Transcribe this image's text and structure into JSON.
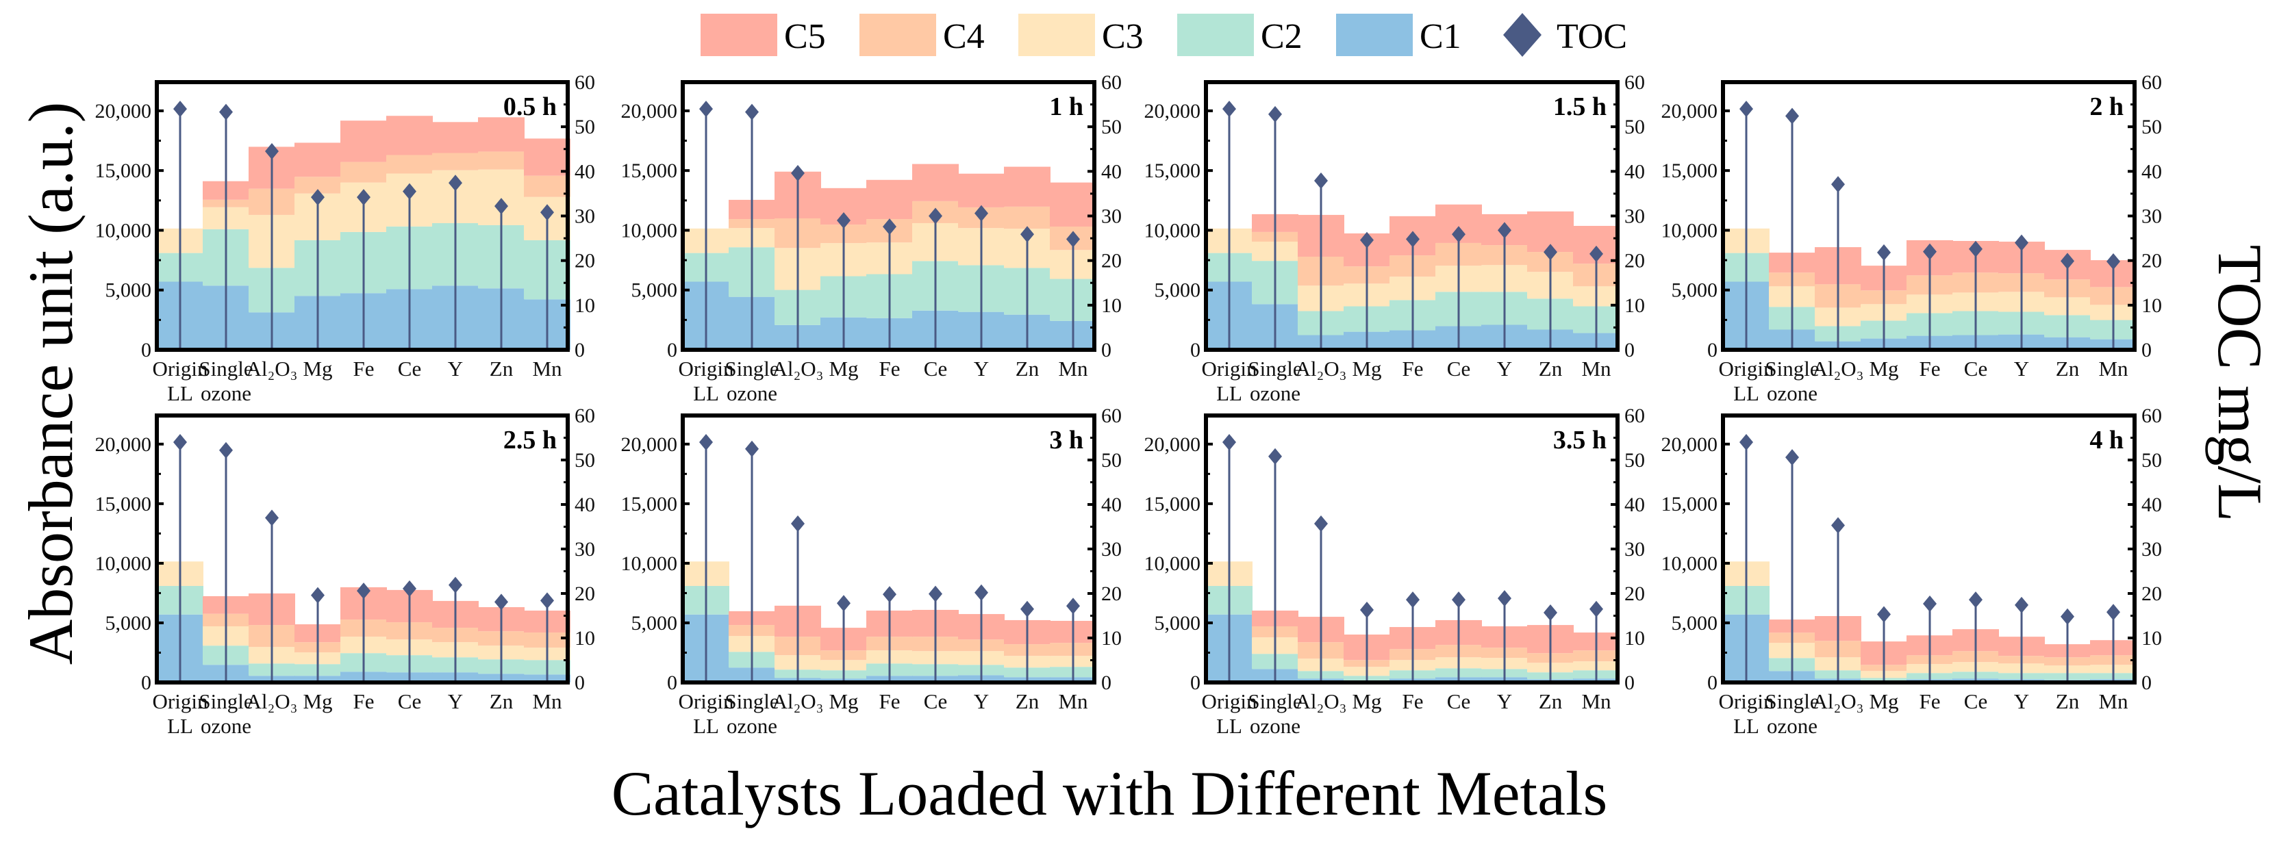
{
  "chart_data": {
    "type": "bar",
    "subtype": "stacked bar with TOC lollipop on secondary axis",
    "xlabel": "Catalysts Loaded with Different Metals",
    "ylabel": "Absorbance unit (a.u.)",
    "y2label": "TOC mg/L",
    "ylim": [
      0,
      22400
    ],
    "y2lim": [
      0,
      60
    ],
    "yticks": [
      "0",
      "5,000",
      "10,000",
      "15,000",
      "20,000"
    ],
    "yticks_values": [
      0,
      5000,
      10000,
      15000,
      20000
    ],
    "y2ticks": [
      0,
      10,
      20,
      30,
      40,
      50,
      60
    ],
    "grid": false,
    "legend_placement": "top-center",
    "legend": [
      {
        "name": "C5",
        "color": "#FFADA0",
        "kind": "box"
      },
      {
        "name": "C4",
        "color": "#FFC9A5",
        "kind": "box"
      },
      {
        "name": "C3",
        "color": "#FFE6BC",
        "kind": "box"
      },
      {
        "name": "C2",
        "color": "#B3E5D6",
        "kind": "box"
      },
      {
        "name": "C1",
        "color": "#8DC1E3",
        "kind": "box"
      },
      {
        "name": "TOC",
        "color": "#4A5A84",
        "kind": "diamond"
      }
    ],
    "categories": [
      "Origin LL",
      "Single ozone",
      "Al₂O₃",
      "Mg",
      "Fe",
      "Ce",
      "Y",
      "Zn",
      "Mn"
    ],
    "stack_order": [
      "C1",
      "C2",
      "C3",
      "C4",
      "C5"
    ],
    "panels": [
      {
        "title": "0.5 h",
        "C1": [
          5700,
          5370,
          3130,
          4510,
          4740,
          5080,
          5370,
          5140,
          4220
        ],
        "C2": [
          2400,
          4720,
          3730,
          4660,
          5120,
          5240,
          5230,
          5290,
          4950
        ],
        "C3": [
          2050,
          1840,
          4430,
          3910,
          4140,
          4430,
          4430,
          4660,
          3620
        ],
        "C4": [
          0,
          630,
          2190,
          1400,
          1720,
          1550,
          1440,
          1500,
          1780
        ],
        "C5": [
          0,
          1550,
          3510,
          2850,
          3460,
          3280,
          2590,
          2870,
          3110
        ],
        "TOC": [
          54,
          53.3,
          44.5,
          34.2,
          34.2,
          35.5,
          37.4,
          32.2,
          30.8
        ]
      },
      {
        "title": "1 h",
        "C1": [
          5700,
          4430,
          2070,
          2710,
          2650,
          3280,
          3170,
          2940,
          2420
        ],
        "C2": [
          2400,
          4150,
          2940,
          3450,
          3680,
          4150,
          3910,
          3910,
          3510
        ],
        "C3": [
          2050,
          1610,
          3510,
          2770,
          2650,
          3170,
          3110,
          3280,
          2420
        ],
        "C4": [
          0,
          750,
          2480,
          1550,
          1960,
          1840,
          1730,
          1850,
          1960
        ],
        "C5": [
          0,
          1610,
          3910,
          3050,
          3280,
          3110,
          2820,
          3340,
          3690
        ],
        "TOC": [
          54,
          53.3,
          39.6,
          29,
          27.6,
          30,
          30.6,
          25.9,
          24.8
        ]
      },
      {
        "title": "1.5 h",
        "C1": [
          5700,
          3820,
          1230,
          1510,
          1630,
          1980,
          2090,
          1690,
          1400
        ],
        "C2": [
          2400,
          3620,
          2010,
          2130,
          2530,
          2870,
          2760,
          2590,
          2240
        ],
        "C3": [
          2050,
          1610,
          2130,
          1900,
          1960,
          2190,
          2240,
          2240,
          1670
        ],
        "C4": [
          0,
          810,
          2420,
          1440,
          1780,
          1900,
          1670,
          1670,
          1900
        ],
        "C5": [
          0,
          1490,
          3500,
          2760,
          3280,
          3220,
          2590,
          3390,
          3160
        ],
        "TOC": [
          54,
          52.8,
          37.9,
          24.6,
          24.8,
          25.9,
          26.8,
          21.9,
          21.5
        ]
      },
      {
        "title": "2 h",
        "C1": [
          5700,
          1690,
          710,
          940,
          1170,
          1230,
          1280,
          1050,
          880
        ],
        "C2": [
          2400,
          1900,
          1270,
          1500,
          1900,
          2010,
          1900,
          1850,
          1610
        ],
        "C3": [
          2050,
          1720,
          1550,
          1380,
          1550,
          1550,
          1670,
          1490,
          1270
        ],
        "C4": [
          0,
          1150,
          1950,
          1150,
          1610,
          1670,
          1550,
          1500,
          1490
        ],
        "C5": [
          0,
          1670,
          3110,
          2070,
          2940,
          2650,
          2650,
          2470,
          2250
        ],
        "TOC": [
          54,
          52.4,
          37.1,
          21.8,
          22,
          22.6,
          24,
          19.9,
          19.8
        ]
      },
      {
        "title": "2.5 h",
        "C1": [
          5700,
          1480,
          560,
          560,
          900,
          850,
          850,
          730,
          670
        ],
        "C2": [
          2400,
          1610,
          1030,
          980,
          1560,
          1440,
          1260,
          1210,
          1210
        ],
        "C3": [
          2050,
          1620,
          1390,
          980,
          1380,
          1320,
          1270,
          1150,
          1040
        ],
        "C4": [
          0,
          1050,
          1840,
          860,
          1440,
          1440,
          1210,
          1210,
          1270
        ],
        "C5": [
          0,
          1480,
          2650,
          1500,
          2710,
          2710,
          2250,
          2020,
          1840
        ],
        "TOC": [
          54,
          52.2,
          37,
          19.6,
          20.6,
          21.1,
          21.9,
          18.1,
          18.4
        ]
      },
      {
        "title": "3 h",
        "C1": [
          5700,
          1250,
          380,
          330,
          560,
          560,
          610,
          440,
          440
        ],
        "C2": [
          2400,
          1320,
          700,
          690,
          1030,
          980,
          870,
          810,
          870
        ],
        "C3": [
          2050,
          1330,
          1210,
          860,
          1100,
          1090,
          1150,
          980,
          920
        ],
        "C4": [
          0,
          920,
          1550,
          810,
          1150,
          1210,
          980,
          980,
          1090
        ],
        "C5": [
          0,
          1160,
          2600,
          1900,
          2190,
          2250,
          2130,
          2020,
          1850
        ],
        "TOC": [
          54,
          52.5,
          35.7,
          17.8,
          19.8,
          19.9,
          20.2,
          16.5,
          17.2
        ]
      },
      {
        "title": "3.5 h",
        "C1": [
          5700,
          1130,
          330,
          150,
          330,
          440,
          440,
          270,
          330
        ],
        "C2": [
          2400,
          1270,
          630,
          410,
          690,
          750,
          690,
          580,
          690
        ],
        "C3": [
          2050,
          1380,
          1040,
          750,
          860,
          920,
          930,
          800,
          750
        ],
        "C4": [
          0,
          930,
          1380,
          570,
          920,
          1040,
          860,
          810,
          920
        ],
        "C5": [
          0,
          1320,
          2130,
          2140,
          1850,
          2080,
          1790,
          2360,
          1500
        ],
        "TOC": [
          54,
          50.8,
          35.7,
          16.3,
          18.6,
          18.6,
          18.9,
          15.7,
          16.5
        ]
      },
      {
        "title": "4 h",
        "C1": [
          5700,
          960,
          330,
          100,
          270,
          330,
          270,
          210,
          270
        ],
        "C2": [
          2400,
          1090,
          690,
          280,
          520,
          570,
          520,
          580,
          520
        ],
        "C3": [
          2050,
          1270,
          1090,
          580,
          750,
          810,
          800,
          630,
          690
        ],
        "C4": [
          0,
          860,
          1380,
          520,
          740,
          920,
          640,
          690,
          800
        ],
        "C5": [
          0,
          1100,
          2080,
          1960,
          1670,
          1840,
          1610,
          1100,
          1270
        ],
        "TOC": [
          54,
          50.6,
          35.3,
          15.3,
          17.7,
          18.6,
          17.4,
          14.8,
          15.8
        ]
      }
    ]
  }
}
